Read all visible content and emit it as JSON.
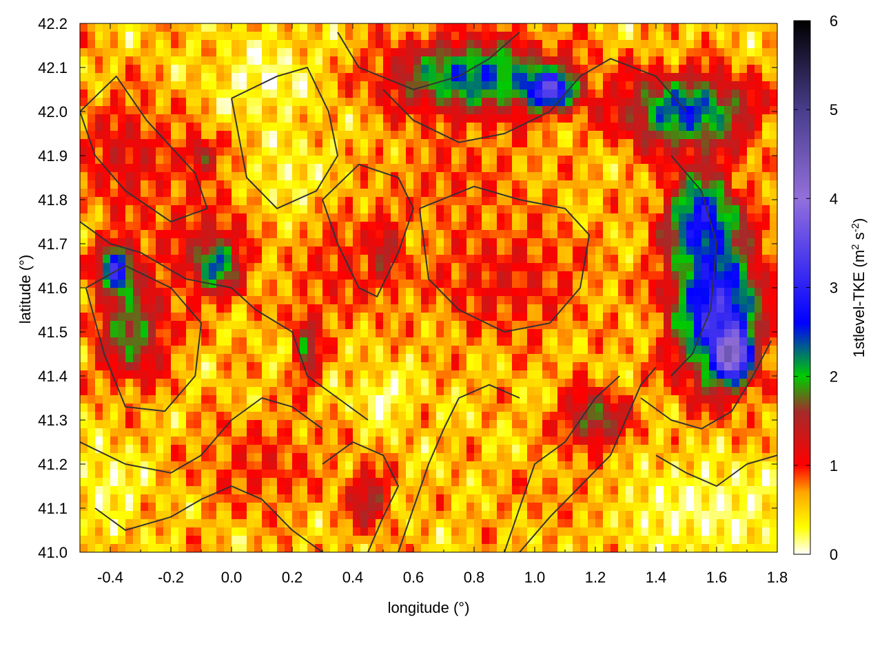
{
  "chart_data": {
    "type": "heatmap",
    "title": "",
    "xlabel": "longitude (°)",
    "ylabel": "latitude (°)",
    "xlim": [
      -0.5,
      1.8
    ],
    "ylim": [
      41.0,
      42.2
    ],
    "x_ticks": [
      {
        "value": -0.4,
        "label": "-0.4"
      },
      {
        "value": -0.2,
        "label": "-0.2"
      },
      {
        "value": 0.0,
        "label": "0.0"
      },
      {
        "value": 0.2,
        "label": "0.2"
      },
      {
        "value": 0.4,
        "label": "0.4"
      },
      {
        "value": 0.6,
        "label": "0.6"
      },
      {
        "value": 0.8,
        "label": "0.8"
      },
      {
        "value": 1.0,
        "label": "1.0"
      },
      {
        "value": 1.2,
        "label": "1.2"
      },
      {
        "value": 1.4,
        "label": "1.4"
      },
      {
        "value": 1.6,
        "label": "1.6"
      },
      {
        "value": 1.8,
        "label": "1.8"
      }
    ],
    "y_ticks": [
      {
        "value": 41.0,
        "label": "41.0"
      },
      {
        "value": 41.1,
        "label": "41.1"
      },
      {
        "value": 41.2,
        "label": "41.2"
      },
      {
        "value": 41.3,
        "label": "41.3"
      },
      {
        "value": 41.4,
        "label": "41.4"
      },
      {
        "value": 41.5,
        "label": "41.5"
      },
      {
        "value": 41.6,
        "label": "41.6"
      },
      {
        "value": 41.7,
        "label": "41.7"
      },
      {
        "value": 41.8,
        "label": "41.8"
      },
      {
        "value": 41.9,
        "label": "41.9"
      },
      {
        "value": 42.0,
        "label": "42.0"
      },
      {
        "value": 42.1,
        "label": "42.1"
      },
      {
        "value": 42.2,
        "label": "42.2"
      }
    ],
    "colorbar": {
      "label_main": "1stlevel-TKE (m",
      "label_sup1": "2",
      "label_mid": " s",
      "label_sup2": "-2",
      "label_end": ")",
      "range": [
        0,
        6
      ],
      "ticks": [
        {
          "value": 0,
          "label": "0"
        },
        {
          "value": 1,
          "label": "1"
        },
        {
          "value": 2,
          "label": "2"
        },
        {
          "value": 3,
          "label": "3"
        },
        {
          "value": 4,
          "label": "4"
        },
        {
          "value": 5,
          "label": "5"
        },
        {
          "value": 6,
          "label": "6"
        }
      ],
      "stops": [
        {
          "value": 0.0,
          "color": "#ffffff"
        },
        {
          "value": 0.3,
          "color": "#ffff00"
        },
        {
          "value": 0.7,
          "color": "#ffa500"
        },
        {
          "value": 1.0,
          "color": "#ff0000"
        },
        {
          "value": 1.6,
          "color": "#a52a2a"
        },
        {
          "value": 2.0,
          "color": "#00cc00"
        },
        {
          "value": 2.6,
          "color": "#0000ff"
        },
        {
          "value": 4.0,
          "color": "#9370db"
        },
        {
          "value": 5.0,
          "color": "#483d8b"
        },
        {
          "value": 6.0,
          "color": "#000000"
        }
      ]
    },
    "field_features": [
      {
        "lon": 0.12,
        "lat": 42.08,
        "value": 0.15,
        "sx": 0.12,
        "sy": 0.06
      },
      {
        "lon": 0.2,
        "lat": 41.82,
        "value": 0.2,
        "sx": 0.1,
        "sy": 0.08
      },
      {
        "lon": -0.35,
        "lat": 41.9,
        "value": 1.2,
        "sx": 0.12,
        "sy": 0.1
      },
      {
        "lon": -0.1,
        "lat": 41.7,
        "value": 1.1,
        "sx": 0.14,
        "sy": 0.1
      },
      {
        "lon": -0.33,
        "lat": 41.5,
        "value": 1.9,
        "sx": 0.08,
        "sy": 0.08
      },
      {
        "lon": -0.38,
        "lat": 41.64,
        "value": 3.0,
        "sx": 0.04,
        "sy": 0.04
      },
      {
        "lon": -0.05,
        "lat": 41.65,
        "value": 2.4,
        "sx": 0.05,
        "sy": 0.04
      },
      {
        "lon": -0.1,
        "lat": 41.9,
        "value": 1.6,
        "sx": 0.04,
        "sy": 0.03
      },
      {
        "lon": 0.25,
        "lat": 41.47,
        "value": 1.9,
        "sx": 0.03,
        "sy": 0.06
      },
      {
        "lon": 0.5,
        "lat": 41.68,
        "value": 1.8,
        "sx": 0.04,
        "sy": 0.06
      },
      {
        "lon": 0.35,
        "lat": 41.65,
        "value": 1.0,
        "sx": 0.1,
        "sy": 0.1
      },
      {
        "lon": 0.9,
        "lat": 41.62,
        "value": 1.1,
        "sx": 0.2,
        "sy": 0.1
      },
      {
        "lon": 0.75,
        "lat": 41.85,
        "value": 0.9,
        "sx": 0.18,
        "sy": 0.08
      },
      {
        "lon": 0.8,
        "lat": 42.08,
        "value": 2.4,
        "sx": 0.2,
        "sy": 0.06
      },
      {
        "lon": 1.05,
        "lat": 42.05,
        "value": 3.5,
        "sx": 0.06,
        "sy": 0.03
      },
      {
        "lon": 1.5,
        "lat": 42.0,
        "value": 2.5,
        "sx": 0.15,
        "sy": 0.06
      },
      {
        "lon": 1.6,
        "lat": 41.55,
        "value": 3.2,
        "sx": 0.1,
        "sy": 0.12
      },
      {
        "lon": 1.65,
        "lat": 41.45,
        "value": 4.6,
        "sx": 0.04,
        "sy": 0.04
      },
      {
        "lon": 1.55,
        "lat": 41.75,
        "value": 2.8,
        "sx": 0.08,
        "sy": 0.08
      },
      {
        "lon": 1.2,
        "lat": 41.3,
        "value": 1.8,
        "sx": 0.08,
        "sy": 0.05
      },
      {
        "lon": 0.45,
        "lat": 41.12,
        "value": 1.6,
        "sx": 0.05,
        "sy": 0.05
      },
      {
        "lon": 0.1,
        "lat": 41.2,
        "value": 1.0,
        "sx": 0.15,
        "sy": 0.08
      },
      {
        "lon": 1.2,
        "lat": 41.12,
        "value": 0.9,
        "sx": 0.2,
        "sy": 0.06
      },
      {
        "lon": 1.55,
        "lat": 41.1,
        "value": 0.15,
        "sx": 0.25,
        "sy": 0.08
      },
      {
        "lon": 0.5,
        "lat": 41.35,
        "value": 0.1,
        "sx": 0.06,
        "sy": 0.04
      },
      {
        "lon": -0.4,
        "lat": 41.15,
        "value": 0.2,
        "sx": 0.08,
        "sy": 0.06
      }
    ],
    "contours": [
      [
        [
          -0.5,
          42.0
        ],
        [
          -0.38,
          42.08
        ],
        [
          -0.28,
          41.98
        ],
        [
          -0.2,
          41.92
        ],
        [
          -0.12,
          41.86
        ],
        [
          -0.08,
          41.78
        ],
        [
          -0.2,
          41.75
        ],
        [
          -0.35,
          41.82
        ],
        [
          -0.45,
          41.9
        ],
        [
          -0.5,
          42.0
        ]
      ],
      [
        [
          -0.5,
          41.75
        ],
        [
          -0.4,
          41.7
        ],
        [
          -0.3,
          41.68
        ],
        [
          -0.15,
          41.62
        ],
        [
          0.0,
          41.6
        ],
        [
          0.08,
          41.55
        ],
        [
          0.2,
          41.5
        ],
        [
          0.25,
          41.4
        ],
        [
          0.35,
          41.35
        ],
        [
          0.45,
          41.3
        ]
      ],
      [
        [
          -0.48,
          41.6
        ],
        [
          -0.42,
          41.45
        ],
        [
          -0.35,
          41.33
        ],
        [
          -0.22,
          41.32
        ],
        [
          -0.12,
          41.4
        ],
        [
          -0.1,
          41.52
        ],
        [
          -0.2,
          41.6
        ],
        [
          -0.35,
          41.65
        ],
        [
          -0.48,
          41.6
        ]
      ],
      [
        [
          0.0,
          42.03
        ],
        [
          0.15,
          42.08
        ],
        [
          0.25,
          42.1
        ],
        [
          0.32,
          42.0
        ],
        [
          0.35,
          41.9
        ],
        [
          0.28,
          41.82
        ],
        [
          0.15,
          41.78
        ],
        [
          0.05,
          41.85
        ],
        [
          0.0,
          42.03
        ]
      ],
      [
        [
          0.3,
          41.8
        ],
        [
          0.42,
          41.88
        ],
        [
          0.55,
          41.85
        ],
        [
          0.6,
          41.78
        ],
        [
          0.55,
          41.68
        ],
        [
          0.48,
          41.58
        ],
        [
          0.42,
          41.6
        ],
        [
          0.35,
          41.7
        ],
        [
          0.3,
          41.8
        ]
      ],
      [
        [
          0.62,
          41.78
        ],
        [
          0.8,
          41.83
        ],
        [
          0.95,
          41.8
        ],
        [
          1.1,
          41.78
        ],
        [
          1.18,
          41.72
        ],
        [
          1.15,
          41.6
        ],
        [
          1.05,
          41.52
        ],
        [
          0.9,
          41.5
        ],
        [
          0.75,
          41.55
        ],
        [
          0.65,
          41.62
        ],
        [
          0.62,
          41.78
        ]
      ],
      [
        [
          0.35,
          42.18
        ],
        [
          0.42,
          42.1
        ],
        [
          0.6,
          42.05
        ],
        [
          0.75,
          42.08
        ],
        [
          0.85,
          42.12
        ],
        [
          0.95,
          42.18
        ]
      ],
      [
        [
          0.5,
          42.05
        ],
        [
          0.6,
          41.98
        ],
        [
          0.75,
          41.93
        ],
        [
          0.9,
          41.95
        ],
        [
          1.05,
          42.0
        ],
        [
          1.15,
          42.08
        ],
        [
          1.25,
          42.12
        ],
        [
          1.4,
          42.08
        ],
        [
          1.5,
          42.0
        ]
      ],
      [
        [
          1.45,
          41.9
        ],
        [
          1.55,
          41.82
        ],
        [
          1.6,
          41.7
        ],
        [
          1.58,
          41.55
        ],
        [
          1.52,
          41.45
        ],
        [
          1.45,
          41.4
        ]
      ],
      [
        [
          1.35,
          41.35
        ],
        [
          1.45,
          41.3
        ],
        [
          1.55,
          41.28
        ],
        [
          1.65,
          41.32
        ],
        [
          1.72,
          41.4
        ],
        [
          1.78,
          41.48
        ]
      ],
      [
        [
          0.95,
          41.0
        ],
        [
          1.05,
          41.08
        ],
        [
          1.15,
          41.15
        ],
        [
          1.25,
          41.22
        ],
        [
          1.3,
          41.3
        ],
        [
          1.35,
          41.38
        ],
        [
          1.4,
          41.42
        ]
      ],
      [
        [
          0.9,
          41.0
        ],
        [
          0.95,
          41.1
        ],
        [
          1.0,
          41.2
        ],
        [
          1.1,
          41.25
        ],
        [
          1.2,
          41.35
        ],
        [
          1.28,
          41.4
        ]
      ],
      [
        [
          1.4,
          41.22
        ],
        [
          1.5,
          41.18
        ],
        [
          1.6,
          41.15
        ],
        [
          1.7,
          41.2
        ],
        [
          1.8,
          41.22
        ]
      ],
      [
        [
          -0.5,
          41.25
        ],
        [
          -0.35,
          41.2
        ],
        [
          -0.2,
          41.18
        ],
        [
          -0.1,
          41.22
        ],
        [
          0.0,
          41.3
        ],
        [
          0.1,
          41.35
        ],
        [
          0.2,
          41.33
        ],
        [
          0.3,
          41.28
        ]
      ],
      [
        [
          -0.45,
          41.1
        ],
        [
          -0.35,
          41.05
        ],
        [
          -0.2,
          41.08
        ],
        [
          -0.1,
          41.12
        ],
        [
          0.0,
          41.15
        ],
        [
          0.1,
          41.12
        ],
        [
          0.2,
          41.05
        ],
        [
          0.3,
          41.0
        ]
      ],
      [
        [
          0.55,
          41.0
        ],
        [
          0.6,
          41.1
        ],
        [
          0.65,
          41.2
        ],
        [
          0.7,
          41.28
        ],
        [
          0.75,
          41.35
        ],
        [
          0.85,
          41.38
        ],
        [
          0.95,
          41.35
        ]
      ],
      [
        [
          0.3,
          41.2
        ],
        [
          0.4,
          41.25
        ],
        [
          0.5,
          41.22
        ],
        [
          0.55,
          41.15
        ],
        [
          0.5,
          41.08
        ],
        [
          0.45,
          41.0
        ]
      ]
    ]
  }
}
